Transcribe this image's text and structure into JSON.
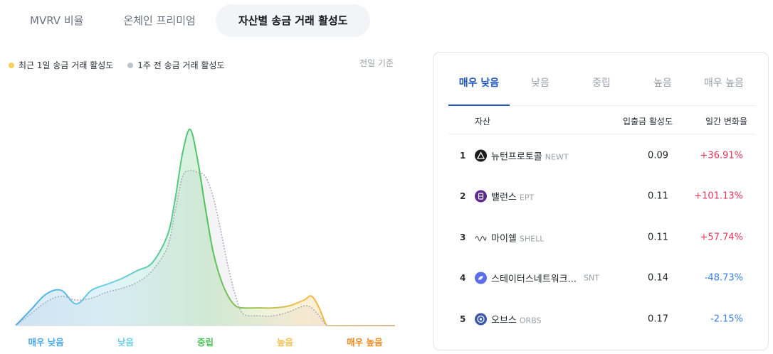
{
  "top_tabs": [
    {
      "label": "MVRV 비율",
      "active": false
    },
    {
      "label": "온체인 프리미엄",
      "active": false
    },
    {
      "label": "자산별 송금 거래 활성도",
      "active": true
    }
  ],
  "legend": {
    "current": {
      "label": "최근 1일 송금 거래 활성도",
      "color": "#f7d35c"
    },
    "previous": {
      "label": "1주 전 송금 거래 활성도",
      "color": "#bfc3cb"
    }
  },
  "basis_label": "전일 기준",
  "chart_data": {
    "type": "area",
    "x_range": [
      0,
      100
    ],
    "y_range": [
      0,
      100
    ],
    "categories": [
      {
        "label": "매우 낮음",
        "color": "#4aa8e8",
        "x": 8
      },
      {
        "label": "낮음",
        "color": "#6fd0e6",
        "x": 29
      },
      {
        "label": "중립",
        "color": "#4cc35a",
        "x": 50
      },
      {
        "label": "높음",
        "color": "#f2c14e",
        "x": 71
      },
      {
        "label": "매우 높음",
        "color": "#ef8a1f",
        "x": 92
      }
    ],
    "series": [
      {
        "type": "area",
        "x": [
          0,
          4,
          8,
          12,
          16,
          20,
          24,
          28,
          32,
          36,
          40,
          42,
          44,
          46,
          48,
          50,
          52,
          54,
          56,
          58,
          60,
          64,
          68,
          72,
          76,
          78,
          80,
          82,
          84,
          86,
          88,
          92,
          96,
          100
        ],
        "y": [
          0,
          8,
          16,
          18,
          11,
          18,
          21,
          24,
          28,
          32,
          46,
          64,
          88,
          100,
          84,
          60,
          38,
          24,
          15,
          10,
          9,
          9,
          9,
          10,
          13,
          15,
          9,
          0,
          0,
          0,
          0,
          0,
          0,
          0
        ]
      },
      {
        "type": "line",
        "x": [
          0,
          4,
          8,
          12,
          16,
          20,
          24,
          28,
          32,
          36,
          40,
          42,
          44,
          46,
          48,
          50,
          52,
          54,
          56,
          58,
          60,
          64,
          68,
          72,
          76,
          78,
          80,
          82,
          84,
          86,
          88,
          92,
          96,
          100
        ],
        "y": [
          0,
          6,
          12,
          15,
          13,
          14,
          17,
          19,
          22,
          28,
          40,
          58,
          76,
          79,
          78,
          76,
          66,
          49,
          30,
          15,
          6,
          5,
          5,
          7,
          10,
          9,
          5,
          0,
          0,
          0,
          0,
          0,
          0,
          0
        ]
      }
    ]
  },
  "panel": {
    "subtabs": [
      {
        "label": "매우 낮음",
        "active": true
      },
      {
        "label": "낮음",
        "active": false
      },
      {
        "label": "중립",
        "active": false
      },
      {
        "label": "높음",
        "active": false
      },
      {
        "label": "매우 높음",
        "active": false
      }
    ],
    "headers": {
      "asset": "자산",
      "activity": "입출금 활성도",
      "change": "일간 변화율"
    },
    "rows": [
      {
        "rank": "1",
        "name": "뉴턴프로토콜",
        "ticker": "NEWT",
        "activity": "0.09",
        "change": "+36.91%",
        "icon_color": "#1c1c1c",
        "icon": "newt-icon"
      },
      {
        "rank": "2",
        "name": "밸런스",
        "ticker": "EPT",
        "activity": "0.11",
        "change": "+101.13%",
        "icon_color": "#5b2b8c",
        "icon": "ept-icon"
      },
      {
        "rank": "3",
        "name": "마이쉘",
        "ticker": "SHELL",
        "activity": "0.11",
        "change": "+57.74%",
        "icon_color": "#ffffff",
        "icon": "shell-icon"
      },
      {
        "rank": "4",
        "name": "스테이터스네트워크...",
        "ticker": "SNT",
        "activity": "0.14",
        "change": "-48.73%",
        "icon_color": "#5b6dee",
        "icon": "snt-icon"
      },
      {
        "rank": "5",
        "name": "오브스",
        "ticker": "ORBS",
        "activity": "0.17",
        "change": "-2.15%",
        "icon_color": "#3b5aa8",
        "icon": "orbs-icon"
      }
    ]
  }
}
